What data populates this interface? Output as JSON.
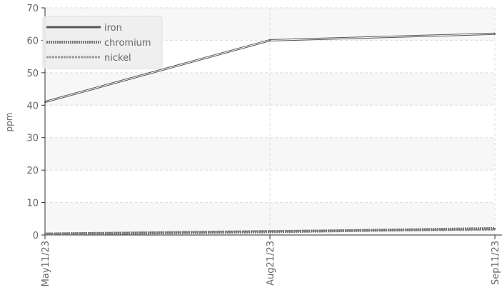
{
  "chart_data": {
    "type": "line",
    "x": [
      "May11/23",
      "Aug21/23",
      "Sep11/23"
    ],
    "xlabel": "",
    "ylabel": "ppm",
    "ylim": [
      0,
      70
    ],
    "yticks": [
      0,
      10,
      20,
      30,
      40,
      50,
      60,
      70
    ],
    "grid": true,
    "legend_position": "top-left",
    "series": [
      {
        "name": "iron",
        "values": [
          41,
          60,
          62
        ],
        "color": "#555555",
        "style": "solid"
      },
      {
        "name": "chromium",
        "values": [
          0.3,
          1.0,
          2.0
        ],
        "color": "#777777",
        "style": "dotted"
      },
      {
        "name": "nickel",
        "values": [
          0.4,
          1.2,
          1.7
        ],
        "color": "#999999",
        "style": "dashed"
      }
    ]
  }
}
